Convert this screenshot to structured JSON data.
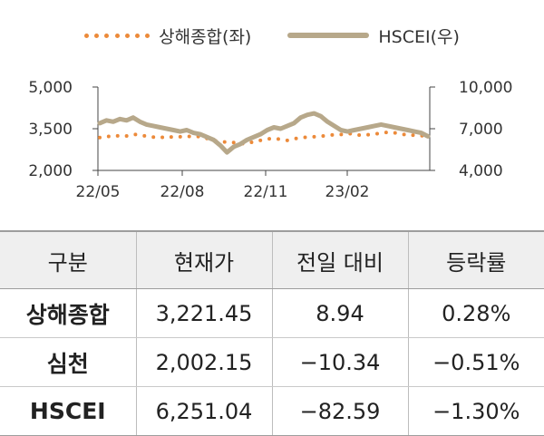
{
  "chart_data": {
    "type": "line",
    "legend": [
      "상해종합(좌)",
      "HSCEI(우)"
    ],
    "x_ticks": [
      "22/05",
      "22/08",
      "22/11",
      "23/02"
    ],
    "y_left": {
      "ticks": [
        "2,000",
        "3,500",
        "5,000"
      ],
      "range": [
        2000,
        5000
      ]
    },
    "y_right": {
      "ticks": [
        "4,000",
        "7,000",
        "10,000"
      ],
      "range": [
        4000,
        10000
      ]
    },
    "series": [
      {
        "name": "상해종합(좌)",
        "axis": "left",
        "style": "dotted",
        "color": "#ec8a3a",
        "values": [
          3180,
          3230,
          3210,
          3260,
          3240,
          3300,
          3270,
          3230,
          3200,
          3170,
          3230,
          3190,
          3210,
          3240,
          3200,
          3230,
          3150,
          3080,
          3030,
          3020,
          3000,
          2960,
          2970,
          3030,
          3080,
          3130,
          3150,
          3120,
          3080,
          3140,
          3170,
          3200,
          3210,
          3230,
          3260,
          3280,
          3290,
          3330,
          3300,
          3260,
          3280,
          3310,
          3330,
          3380,
          3350,
          3320,
          3260,
          3270,
          3250,
          3220
        ]
      },
      {
        "name": "HSCEI(우)",
        "axis": "right",
        "style": "solid",
        "color": "#b7a88a",
        "values": [
          7400,
          7600,
          7500,
          7700,
          7600,
          7800,
          7500,
          7300,
          7200,
          7100,
          7000,
          6900,
          6800,
          6900,
          6700,
          6600,
          6400,
          6200,
          5800,
          5300,
          5700,
          5900,
          6200,
          6400,
          6600,
          6900,
          7100,
          7000,
          7200,
          7400,
          7800,
          8000,
          8100,
          7900,
          7500,
          7200,
          6900,
          6800,
          6900,
          7000,
          7100,
          7200,
          7300,
          7200,
          7100,
          7000,
          6900,
          6800,
          6700,
          6450
        ]
      }
    ]
  },
  "table": {
    "headers": [
      "구분",
      "현재가",
      "전일 대비",
      "등락률"
    ],
    "rows": [
      [
        "상해종합",
        "3,221.45",
        "8.94",
        "0.28%"
      ],
      [
        "심천",
        "2,002.15",
        "−10.34",
        "−0.51%"
      ],
      [
        "HSCEI",
        "6,251.04",
        "−82.59",
        "−1.30%"
      ]
    ]
  }
}
